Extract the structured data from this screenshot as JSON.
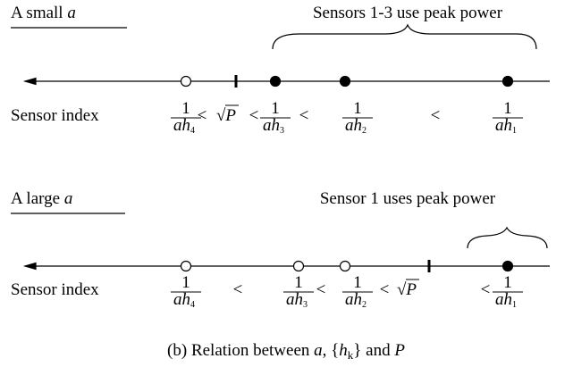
{
  "panels": [
    {
      "title": "A small",
      "title_var": "a",
      "brace_label": "Sensors 1-3 use peak power",
      "axis_label": "Sensor index",
      "labels": [
        {
          "numerator": "1",
          "denominator": "ah",
          "subscript": "4"
        },
        "<",
        "√P",
        "<",
        {
          "numerator": "1",
          "denominator": "ah",
          "subscript": "3"
        },
        "<",
        {
          "numerator": "1",
          "denominator": "ah",
          "subscript": "2"
        },
        "<",
        {
          "numerator": "1",
          "denominator": "ah",
          "subscript": "1"
        }
      ]
    },
    {
      "title": "A large",
      "title_var": "a",
      "brace_label": "Sensor 1 uses peak power",
      "axis_label": "Sensor index",
      "labels": [
        {
          "numerator": "1",
          "denominator": "ah",
          "subscript": "4"
        },
        "<",
        {
          "numerator": "1",
          "denominator": "ah",
          "subscript": "3"
        },
        "<",
        {
          "numerator": "1",
          "denominator": "ah",
          "subscript": "2"
        },
        "<",
        "√P",
        "<",
        {
          "numerator": "1",
          "denominator": "ah",
          "subscript": "1"
        }
      ]
    }
  ],
  "caption": [
    "(b) Relation between ",
    "a",
    ", {",
    "h",
    "k",
    "} and ",
    "P"
  ]
}
